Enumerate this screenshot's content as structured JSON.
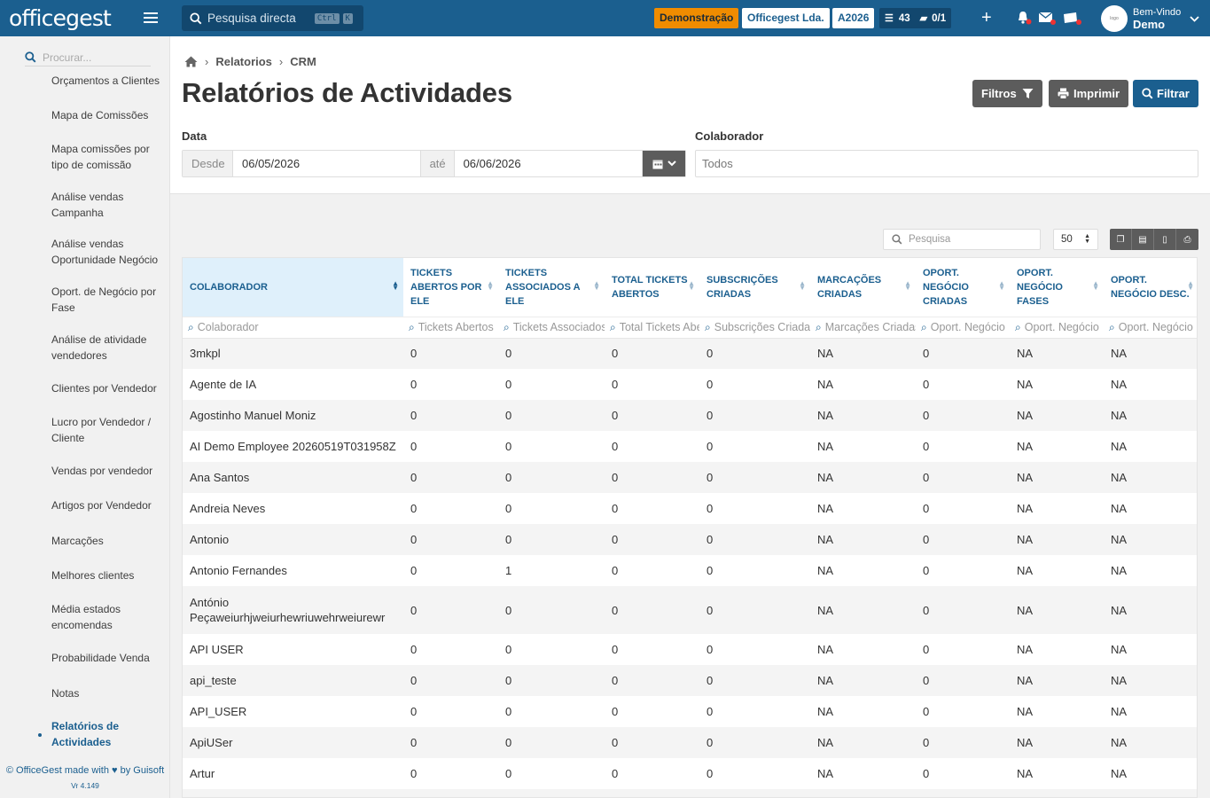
{
  "brand": "officegest",
  "top_search": {
    "placeholder": "Pesquisa directa",
    "kbd1": "Ctrl",
    "kbd2": "K"
  },
  "topbar": {
    "demo_label": "Demonstração",
    "company": "Officegest Lda.",
    "year": "A2026",
    "tasks_count": "43",
    "folders_count": "0/1",
    "welcome": "Bem-Vindo",
    "user_name": "Demo"
  },
  "sidebar": {
    "search_placeholder": "Procurar...",
    "items": [
      "Orçamentos a Clientes",
      "Mapa de Comissões",
      "Mapa comissões por tipo de comissão",
      "Análise vendas Campanha",
      "Análise vendas Oportunidade Negócio",
      "Oport. de Negócio por Fase",
      "Análise de atividade vendedores",
      "Clientes por Vendedor",
      "Lucro por Vendedor / Cliente",
      "Vendas por vendedor",
      "Artigos por Vendedor",
      "Marcações",
      "Melhores clientes",
      "Média estados encomendas",
      "Probabilidade Venda",
      "Notas",
      "Relatórios de Actividades"
    ],
    "footer_line1": "© OfficeGest made with ♥ by Guisoft",
    "footer_line2": "Vr 4.149"
  },
  "breadcrumb": {
    "level1": "Relatorios",
    "level2": "CRM"
  },
  "page_title": "Relatórios de Actividades",
  "buttons": {
    "filters": "Filtros",
    "print": "Imprimir",
    "filter": "Filtrar"
  },
  "form": {
    "date_label": "Data",
    "from_label": "Desde",
    "from_value": "06/05/2026",
    "to_label": "até",
    "to_value": "06/06/2026",
    "colab_label": "Colaborador",
    "colab_value": "Todos"
  },
  "table_tools": {
    "search_placeholder": "Pesquisa",
    "page_size": "50"
  },
  "table": {
    "columns": [
      "Colaborador",
      "Tickets abertos por ele",
      "Tickets associados a ele",
      "Total tickets abertos",
      "Subscrições criadas",
      "Marcações criadas",
      "Oport. negócio criadas",
      "Oport. negócio fases",
      "Oport. negócio desc."
    ],
    "filters": [
      "Colaborador",
      "Tickets Abertos",
      "Tickets Associados",
      "Total Tickets Abertos",
      "Subscrições Criadas",
      "Marcações Criadas",
      "Oport. Negócio",
      "Oport. Negócio",
      "Oport. Negócio"
    ],
    "rows": [
      [
        "3mkpl",
        "0",
        "0",
        "0",
        "0",
        "NA",
        "0",
        "NA",
        "NA"
      ],
      [
        "Agente de IA",
        "0",
        "0",
        "0",
        "0",
        "NA",
        "0",
        "NA",
        "NA"
      ],
      [
        "Agostinho Manuel Moniz",
        "0",
        "0",
        "0",
        "0",
        "NA",
        "0",
        "NA",
        "NA"
      ],
      [
        "AI Demo Employee 20260519T031958Z",
        "0",
        "0",
        "0",
        "0",
        "NA",
        "0",
        "NA",
        "NA"
      ],
      [
        "Ana Santos",
        "0",
        "0",
        "0",
        "0",
        "NA",
        "0",
        "NA",
        "NA"
      ],
      [
        "Andreia Neves",
        "0",
        "0",
        "0",
        "0",
        "NA",
        "0",
        "NA",
        "NA"
      ],
      [
        "Antonio",
        "0",
        "0",
        "0",
        "0",
        "NA",
        "0",
        "NA",
        "NA"
      ],
      [
        "Antonio Fernandes",
        "0",
        "1",
        "0",
        "0",
        "NA",
        "0",
        "NA",
        "NA"
      ],
      [
        "António Peçaweiurhjweiurhewriuwehrweiurewr",
        "0",
        "0",
        "0",
        "0",
        "NA",
        "0",
        "NA",
        "NA"
      ],
      [
        "API USER",
        "0",
        "0",
        "0",
        "0",
        "NA",
        "0",
        "NA",
        "NA"
      ],
      [
        "api_teste",
        "0",
        "0",
        "0",
        "0",
        "NA",
        "0",
        "NA",
        "NA"
      ],
      [
        "API_USER",
        "0",
        "0",
        "0",
        "0",
        "NA",
        "0",
        "NA",
        "NA"
      ],
      [
        "ApiUSer",
        "0",
        "0",
        "0",
        "0",
        "NA",
        "0",
        "NA",
        "NA"
      ],
      [
        "Artur",
        "0",
        "0",
        "0",
        "0",
        "NA",
        "0",
        "NA",
        "NA"
      ],
      [
        "",
        "",
        "",
        "",
        "",
        "",
        "",
        "",
        ""
      ]
    ]
  }
}
